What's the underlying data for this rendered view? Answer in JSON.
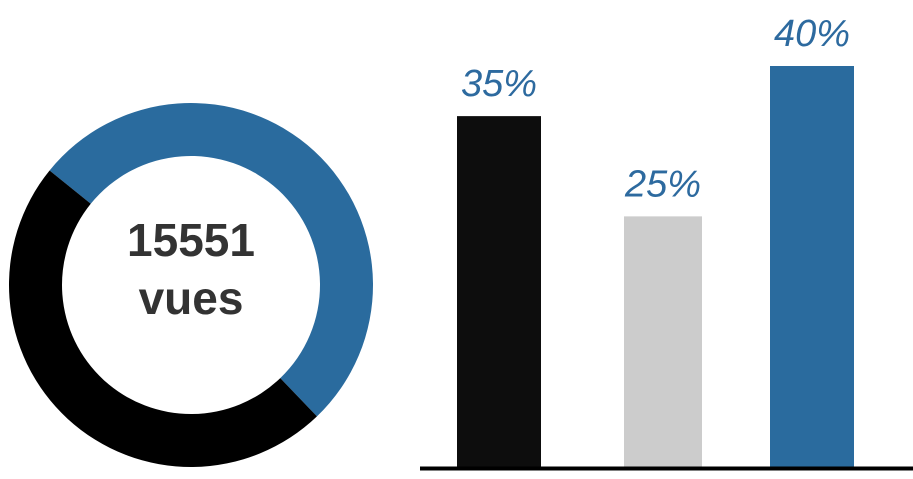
{
  "chart_data": [
    {
      "type": "pie",
      "variant": "donut",
      "center_value": "15551",
      "center_unit": "vues",
      "slices": [
        {
          "value": 52,
          "color": "#2a6b9e"
        },
        {
          "value": 48,
          "color": "#000000"
        }
      ]
    },
    {
      "type": "bar",
      "categories": [
        "",
        "",
        ""
      ],
      "values": [
        35,
        25,
        40
      ],
      "value_labels": [
        "35%",
        "25%",
        "40%"
      ],
      "colors": [
        "#0d0d0d",
        "#cccccc",
        "#2a6b9e"
      ],
      "label_color": "#2d6a9f",
      "ylim": [
        0,
        40
      ],
      "grid": false
    }
  ]
}
